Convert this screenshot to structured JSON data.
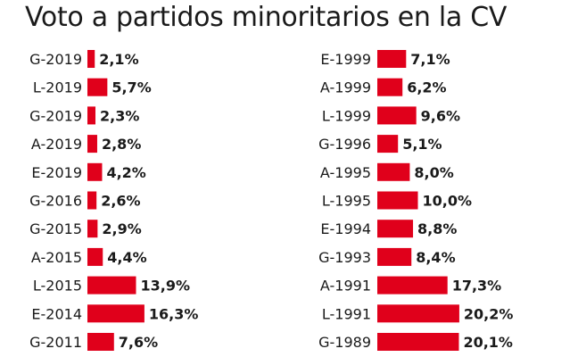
{
  "title": "Voto a partidos minoritarios en la CV",
  "colors": {
    "bar": "#e0001b",
    "text": "#1a1a1a"
  },
  "chart_data": [
    {
      "type": "bar",
      "orientation": "horizontal",
      "categories": [
        "G-2019",
        "L-2019",
        "G-2019",
        "A-2019",
        "E-2019",
        "G-2016",
        "G-2015",
        "A-2015",
        "L-2015",
        "E-2014",
        "G-2011"
      ],
      "values": [
        2.1,
        5.7,
        2.3,
        2.8,
        4.2,
        2.6,
        2.9,
        4.4,
        13.9,
        16.3,
        7.6
      ],
      "labels": [
        "2,1%",
        "5,7%",
        "2,3%",
        "2,8%",
        "4,2%",
        "2,6%",
        "2,9%",
        "4,4%",
        "13,9%",
        "16,3%",
        "7,6%"
      ],
      "xlabel": "",
      "ylabel": ""
    },
    {
      "type": "bar",
      "orientation": "horizontal",
      "categories": [
        "E-1999",
        "A-1999",
        "L-1999",
        "G-1996",
        "A-1995",
        "L-1995",
        "E-1994",
        "G-1993",
        "A-1991",
        "L-1991",
        "G-1989"
      ],
      "values": [
        7.1,
        6.2,
        9.6,
        5.1,
        8.0,
        10.0,
        8.8,
        8.4,
        17.3,
        20.2,
        20.1
      ],
      "labels": [
        "7,1%",
        "6,2%",
        "9,6%",
        "5,1%",
        "8,0%",
        "10,0%",
        "8,8%",
        "8,4%",
        "17,3%",
        "20,2%",
        "20,1%"
      ],
      "xlabel": "",
      "ylabel": ""
    }
  ]
}
